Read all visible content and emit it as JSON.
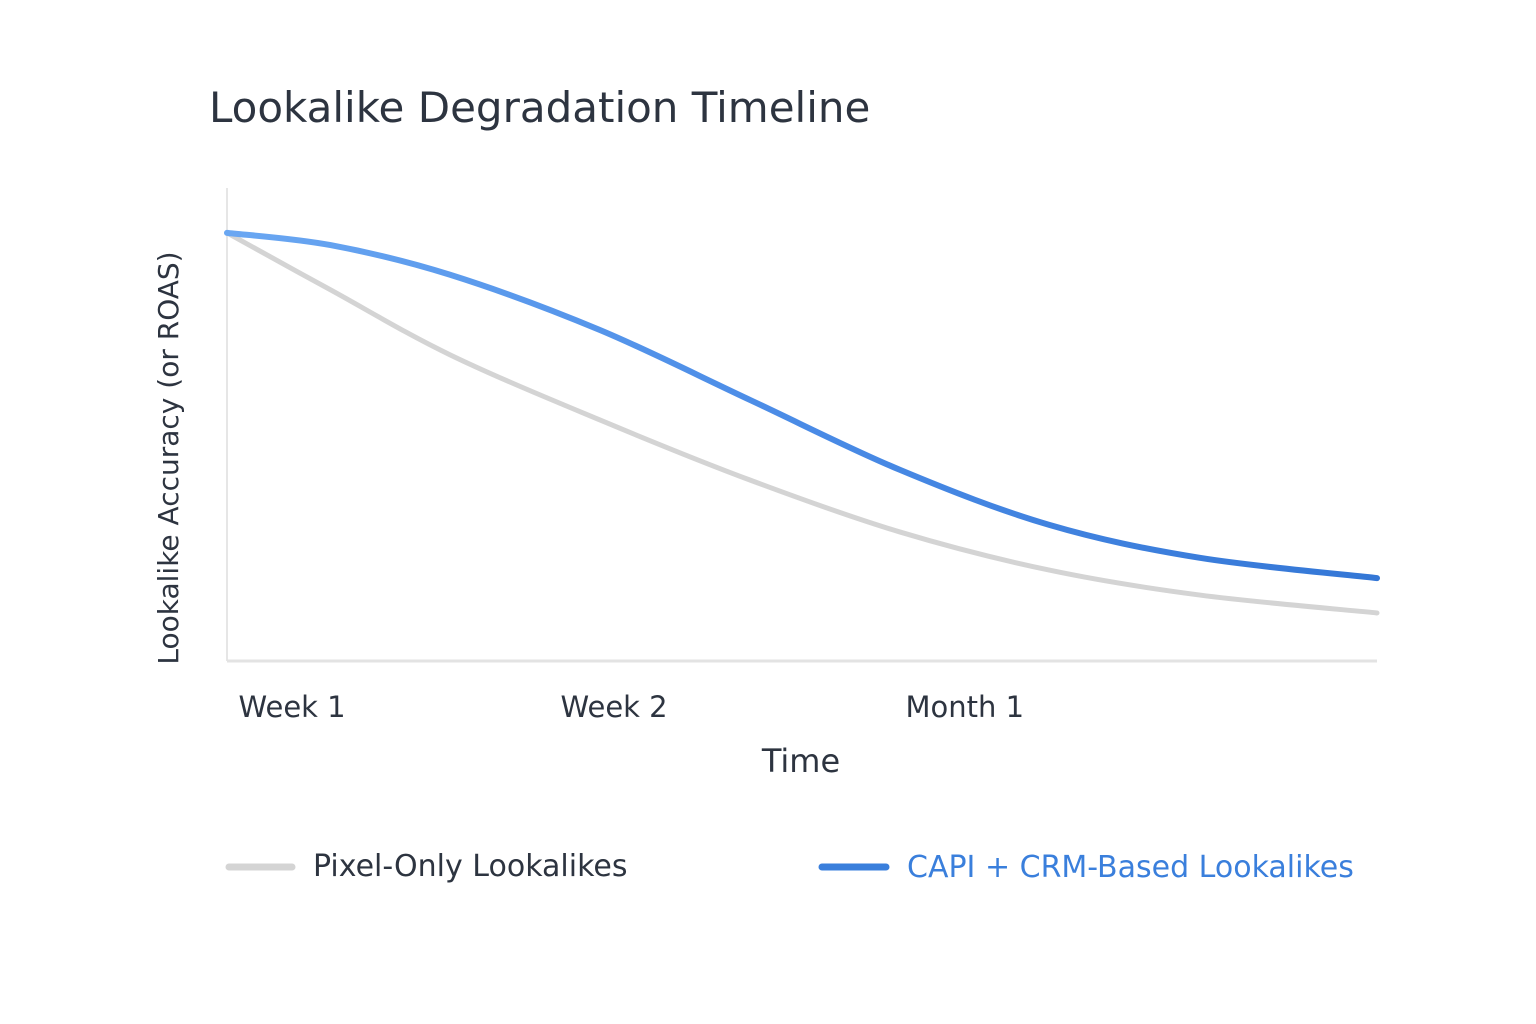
{
  "chart_data": {
    "type": "line",
    "title": "Lookalike Degradation Timeline",
    "xlabel": "Time",
    "ylabel": "Lookalike Accuracy (or ROAS)",
    "xlim": [
      0,
      100
    ],
    "ylim": [
      0,
      100
    ],
    "x_ticks": [
      {
        "value": 1,
        "label": "Week 1"
      },
      {
        "value": 29,
        "label": "Week 2"
      },
      {
        "value": 59,
        "label": "Month 1"
      }
    ],
    "grid": false,
    "legend_placement": "bottom",
    "x": [
      0,
      9,
      19.4,
      32.4,
      45.5,
      58.5,
      71.5,
      84.6,
      100
    ],
    "series": [
      {
        "name": "Pixel-Only Lookalikes",
        "color": "#d4d4d4",
        "values": [
          90.9,
          78.8,
          65.0,
          51.2,
          38.4,
          27.4,
          19.3,
          14.0,
          10.2
        ]
      },
      {
        "name": "CAPI + CRM-Based Lookalikes",
        "color": "#3a7fdc",
        "values": [
          90.9,
          88.3,
          82.0,
          70.3,
          55.4,
          40.6,
          28.9,
          21.9,
          17.6
        ]
      }
    ]
  },
  "colors": {
    "text": "#2d3440",
    "axis": "#e3e3e3",
    "blue_legend_text": "#3a7fdc"
  }
}
